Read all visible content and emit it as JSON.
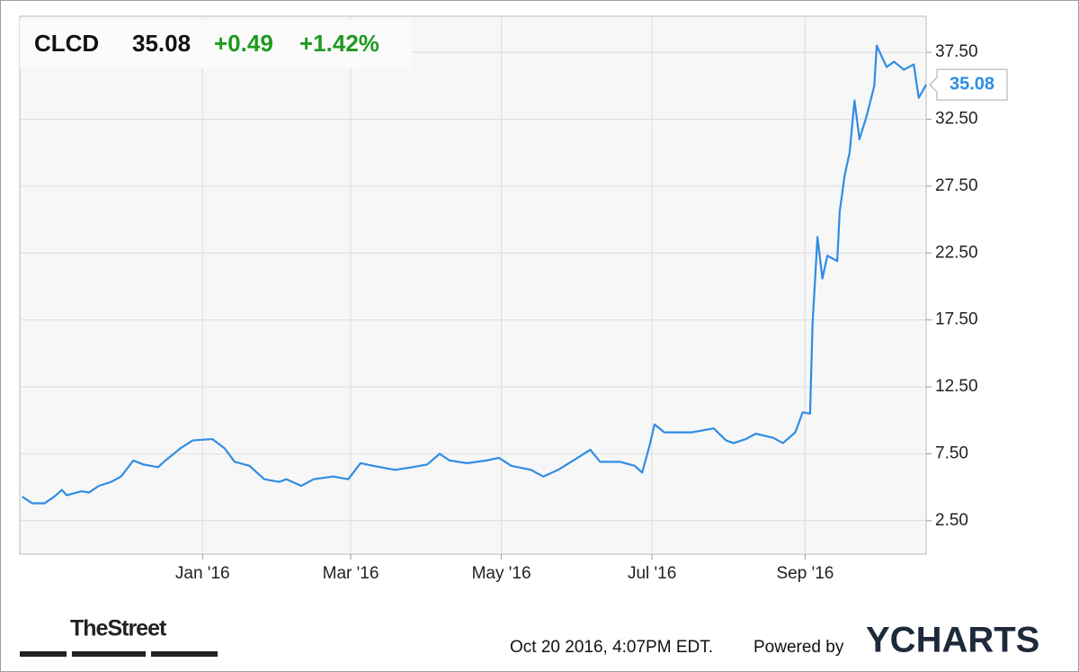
{
  "chart_data": {
    "type": "line",
    "header": {
      "ticker": "CLCD",
      "price": "35.08",
      "change": "+0.49",
      "change_percent": "+1.42%"
    },
    "x": [
      0,
      4,
      9,
      13,
      16,
      18,
      24,
      27,
      31,
      36,
      40,
      45,
      49,
      55,
      58,
      64,
      69,
      77,
      82,
      86,
      92,
      98,
      104,
      107,
      113,
      118,
      126,
      132,
      137,
      142,
      151,
      158,
      164,
      169,
      173,
      180,
      188,
      193,
      198,
      206,
      211,
      217,
      224,
      230,
      234,
      242,
      248,
      251,
      254,
      256,
      260,
      271,
      280,
      285,
      288,
      293,
      297,
      304,
      308,
      313,
      316,
      319,
      320,
      322,
      324,
      326,
      330,
      331,
      333,
      335,
      337,
      339,
      342,
      345,
      346,
      350,
      353,
      357,
      361,
      363,
      366
    ],
    "values": [
      4.3,
      3.8,
      3.8,
      4.3,
      4.8,
      4.4,
      4.7,
      4.6,
      5.1,
      5.4,
      5.8,
      7.0,
      6.7,
      6.5,
      7.0,
      7.9,
      8.5,
      8.6,
      7.9,
      6.9,
      6.6,
      5.6,
      5.4,
      5.6,
      5.1,
      5.6,
      5.8,
      5.6,
      6.8,
      6.6,
      6.3,
      6.5,
      6.7,
      7.5,
      7.0,
      6.8,
      7.0,
      7.2,
      6.6,
      6.3,
      5.8,
      6.3,
      7.1,
      7.8,
      6.9,
      6.9,
      6.6,
      6.1,
      8.1,
      9.7,
      9.1,
      9.1,
      9.4,
      8.5,
      8.3,
      8.6,
      9.0,
      8.7,
      8.3,
      9.1,
      10.6,
      10.5,
      17.2,
      23.7,
      20.6,
      22.3,
      21.9,
      25.6,
      28.3,
      30.0,
      33.9,
      31.0,
      32.8,
      35.0,
      38.0,
      36.4,
      36.8,
      36.2,
      36.6,
      34.1,
      35.08
    ],
    "color": "#2f8de4",
    "xlim": [
      -1,
      366
    ],
    "xticks": [
      {
        "value": 73,
        "label": "Jan '16"
      },
      {
        "value": 133,
        "label": "Mar '16"
      },
      {
        "value": 194,
        "label": "May '16"
      },
      {
        "value": 255,
        "label": "Jul '16"
      },
      {
        "value": 317,
        "label": "Sep '16"
      }
    ],
    "ylim": [
      0,
      40.2
    ],
    "yticks": [
      {
        "value": 2.5,
        "label": "2.50"
      },
      {
        "value": 7.5,
        "label": "7.50"
      },
      {
        "value": 12.5,
        "label": "12.50"
      },
      {
        "value": 17.5,
        "label": "17.50"
      },
      {
        "value": 22.5,
        "label": "22.50"
      },
      {
        "value": 27.5,
        "label": "27.50"
      },
      {
        "value": 32.5,
        "label": "32.50"
      },
      {
        "value": 37.5,
        "label": "37.50"
      }
    ],
    "grid": true,
    "footer": {
      "brand": "TheStreet",
      "timestamp": "Oct 20 2016, 4:07PM EDT.",
      "powered_by": "Powered by",
      "provider": "YCHARTS"
    }
  }
}
